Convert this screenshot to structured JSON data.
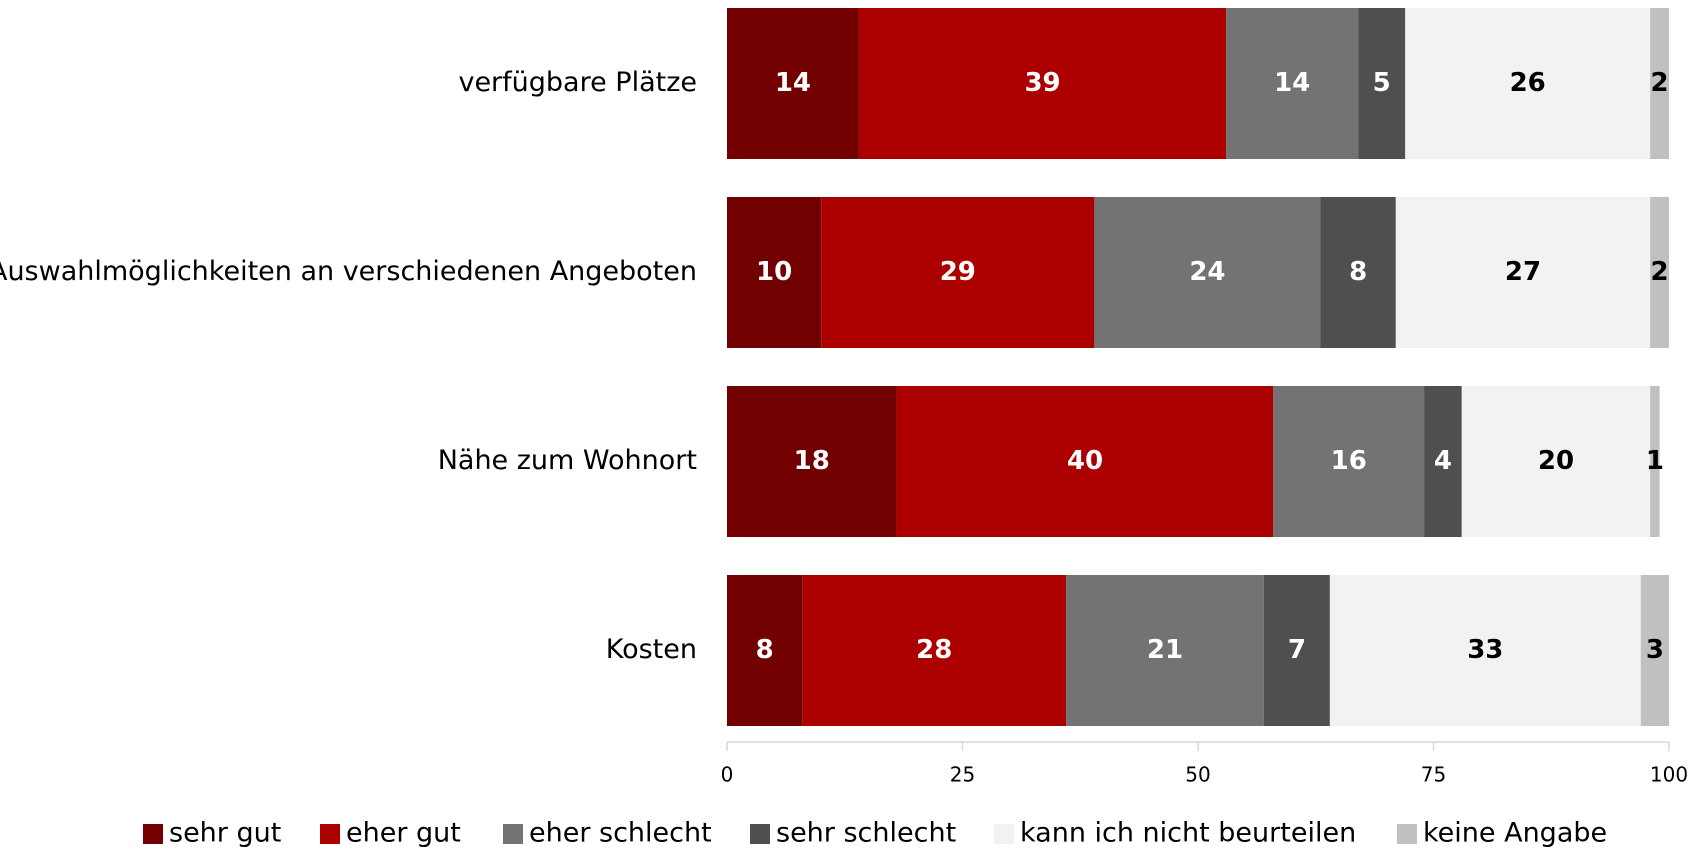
{
  "chart_data": {
    "type": "stacked_bar_horizontal",
    "categories": [
      "verfügbare Plätze",
      "Auswahlmöglichkeiten an verschiedenen Angeboten",
      "Nähe zum Wohnort",
      "Kosten"
    ],
    "series": [
      {
        "name": "sehr gut",
        "color": "#720000",
        "label_color": "#ffffff",
        "values": [
          14,
          10,
          18,
          8
        ]
      },
      {
        "name": "eher gut",
        "color": "#ac0000",
        "label_color": "#ffffff",
        "values": [
          39,
          29,
          40,
          28
        ]
      },
      {
        "name": "eher schlecht",
        "color": "#737373",
        "label_color": "#ffffff",
        "values": [
          14,
          24,
          16,
          21
        ]
      },
      {
        "name": "sehr schlecht",
        "color": "#4f4f4f",
        "label_color": "#ffffff",
        "values": [
          5,
          8,
          4,
          7
        ]
      },
      {
        "name": "kann ich nicht beurteilen",
        "color": "#f2f2f2",
        "label_color": "#000000",
        "values": [
          26,
          27,
          20,
          33
        ]
      },
      {
        "name": "keine Angabe",
        "color": "#c0c0c0",
        "label_color": "#000000",
        "values": [
          2,
          2,
          1,
          3
        ]
      }
    ],
    "xlim": [
      0,
      100
    ],
    "xticks": [
      0,
      25,
      50,
      75,
      100
    ],
    "legend": "bottom"
  }
}
